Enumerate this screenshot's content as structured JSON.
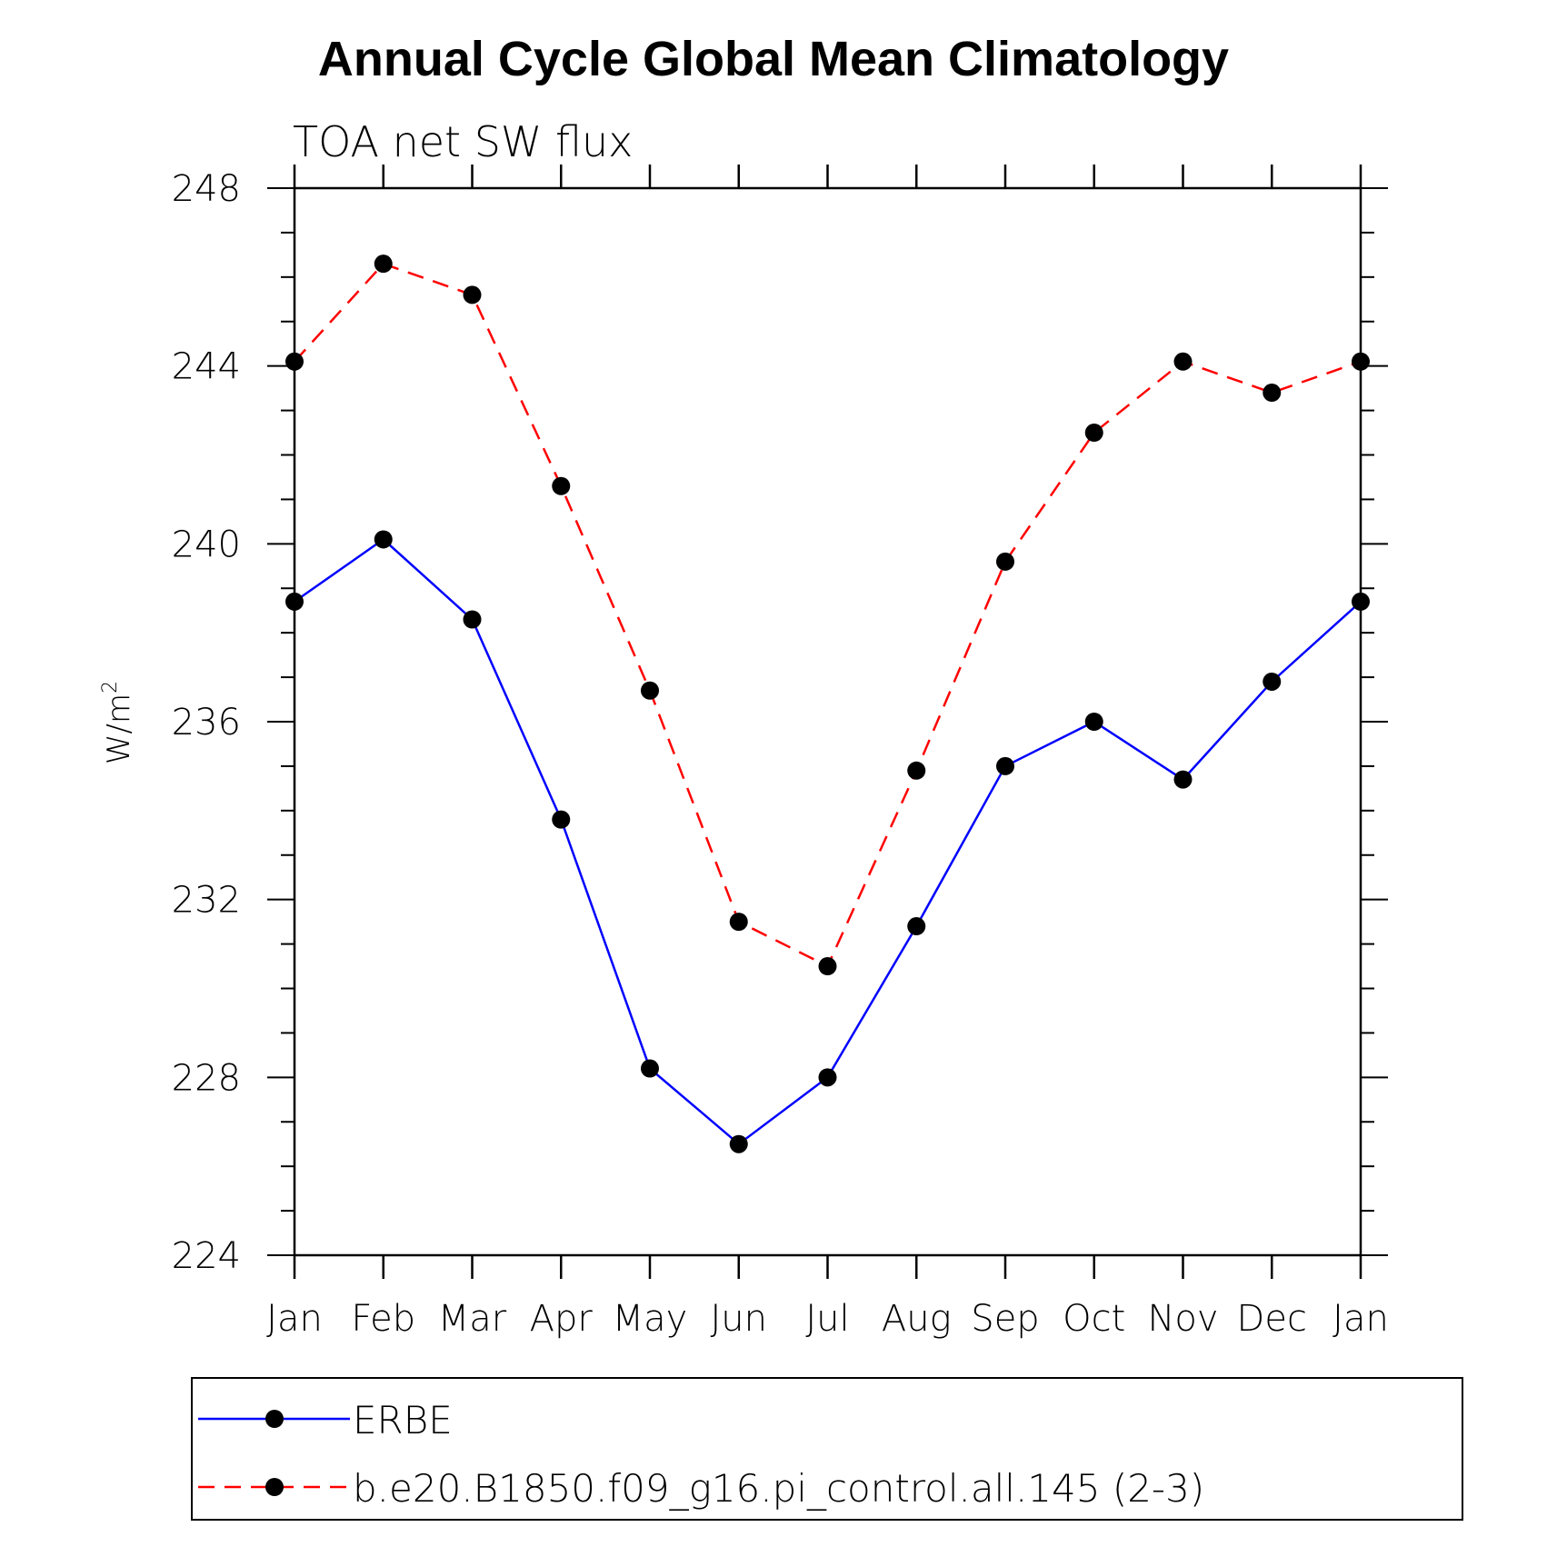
{
  "chart_data": {
    "type": "line",
    "title": "Annual Cycle Global Mean Climatology",
    "subtitle": "TOA net SW flux",
    "ylabel": "W/m",
    "ylabel_superscript": "2",
    "categories": [
      "Jan",
      "Feb",
      "Mar",
      "Apr",
      "May",
      "Jun",
      "Jul",
      "Aug",
      "Sep",
      "Oct",
      "Nov",
      "Dec",
      "Jan"
    ],
    "ylim": [
      224,
      248
    ],
    "yticks": [
      "224",
      "228",
      "232",
      "236",
      "240",
      "244",
      "248"
    ],
    "grid": false,
    "legend_position": "bottom",
    "series": [
      {
        "name": "ERBE",
        "color": "#0000ff",
        "style": "solid",
        "values": [
          238.7,
          240.1,
          238.3,
          233.8,
          228.2,
          226.5,
          228.0,
          231.4,
          235.0,
          236.0,
          234.7,
          236.9,
          238.7
        ]
      },
      {
        "name": "b.e20.B1850.f09_g16.pi_control.all.145 (2-3)",
        "color": "#ff0000",
        "style": "dashed",
        "values": [
          244.1,
          246.3,
          245.6,
          241.3,
          236.7,
          231.5,
          230.5,
          234.9,
          239.6,
          242.5,
          244.1,
          243.4,
          244.1
        ]
      }
    ]
  }
}
